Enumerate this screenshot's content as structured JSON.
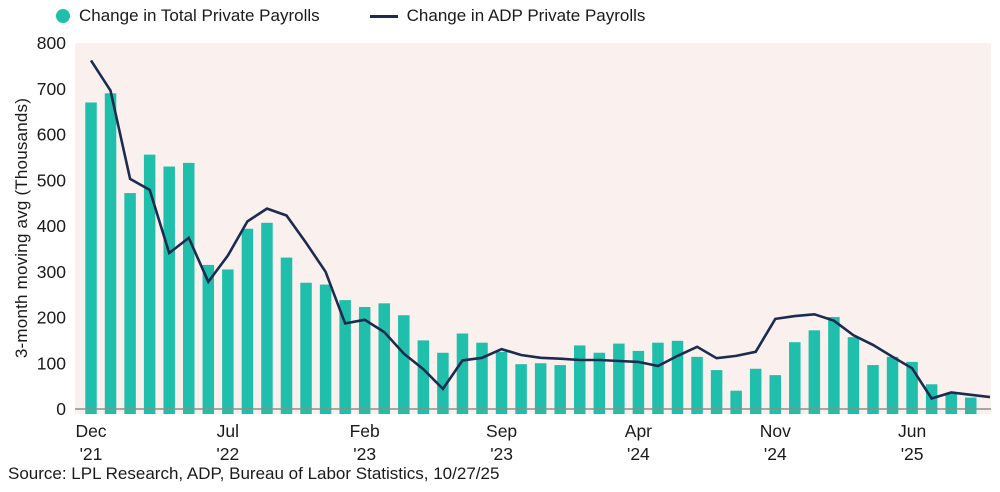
{
  "legend": [
    {
      "label": "Change in Total Private Payrolls",
      "marker": "dot"
    },
    {
      "label": "Change in ADP Private Payrolls",
      "marker": "line"
    }
  ],
  "y_axis": {
    "title": "3-month moving avg (Thousands)",
    "ticks": [
      800,
      700,
      600,
      500,
      400,
      300,
      200,
      100,
      0
    ]
  },
  "x_axis": {
    "ticks": [
      {
        "month": "Dec",
        "year": "'21",
        "index": 0
      },
      {
        "month": "Jul",
        "year": "'22",
        "index": 7
      },
      {
        "month": "Feb",
        "year": "'23",
        "index": 14
      },
      {
        "month": "Sep",
        "year": "'23",
        "index": 21
      },
      {
        "month": "Apr",
        "year": "'24",
        "index": 28
      },
      {
        "month": "Nov",
        "year": "'24",
        "index": 35
      },
      {
        "month": "Jun",
        "year": "'25",
        "index": 42
      }
    ]
  },
  "source": "Source: LPL Research, ADP, Bureau of Labor Statistics, 10/27/25",
  "colors": {
    "bar": "#1FBFAB",
    "line": "#1C2B4F",
    "plot_bg": "#FAF1EF",
    "text": "#1A1A1A",
    "axis_line": "#8E8E8E"
  },
  "chart_data": {
    "type": "bar+line",
    "title": "",
    "ylabel": "3-month moving avg (Thousands)",
    "ylim": [
      0,
      800
    ],
    "grid": false,
    "legend_position": "top",
    "months": [
      "Dec '21",
      "Jan '22",
      "Feb '22",
      "Mar '22",
      "Apr '22",
      "May '22",
      "Jun '22",
      "Jul '22",
      "Aug '22",
      "Sep '22",
      "Oct '22",
      "Nov '22",
      "Dec '22",
      "Jan '23",
      "Feb '23",
      "Mar '23",
      "Apr '23",
      "May '23",
      "Jun '23",
      "Jul '23",
      "Aug '23",
      "Sep '23",
      "Oct '23",
      "Nov '23",
      "Dec '23",
      "Jan '24",
      "Feb '24",
      "Mar '24",
      "Apr '24",
      "May '24",
      "Jun '24",
      "Jul '24",
      "Aug '24",
      "Sep '24",
      "Oct '24",
      "Nov '24",
      "Dec '24",
      "Jan '25",
      "Feb '25",
      "Mar '25",
      "Apr '25",
      "May '25",
      "Jun '25",
      "Jul '25",
      "Aug '25",
      "Sep '25",
      "Oct '25"
    ],
    "series": [
      {
        "name": "Change in Total Private Payrolls",
        "type": "bar",
        "values": [
          670,
          690,
          472,
          556,
          530,
          538,
          315,
          305,
          394,
          407,
          331,
          276,
          272,
          238,
          223,
          231,
          205,
          150,
          123,
          165,
          145,
          125,
          98,
          100,
          96,
          139,
          123,
          143,
          127,
          145,
          149,
          114,
          85,
          40,
          88,
          74,
          146,
          172,
          201,
          157,
          96,
          114,
          103,
          54,
          33,
          25,
          null
        ]
      },
      {
        "name": "Change in ADP Private Payrolls",
        "type": "line",
        "values": [
          762,
          696,
          503,
          479,
          341,
          374,
          278,
          335,
          410,
          438,
          423,
          363,
          300,
          187,
          195,
          168,
          121,
          87,
          44,
          106,
          112,
          131,
          118,
          112,
          110,
          107,
          107,
          105,
          103,
          94,
          116,
          136,
          111,
          116,
          125,
          197,
          203,
          207,
          193,
          161,
          140,
          114,
          89,
          23,
          36,
          31,
          26
        ]
      }
    ]
  }
}
